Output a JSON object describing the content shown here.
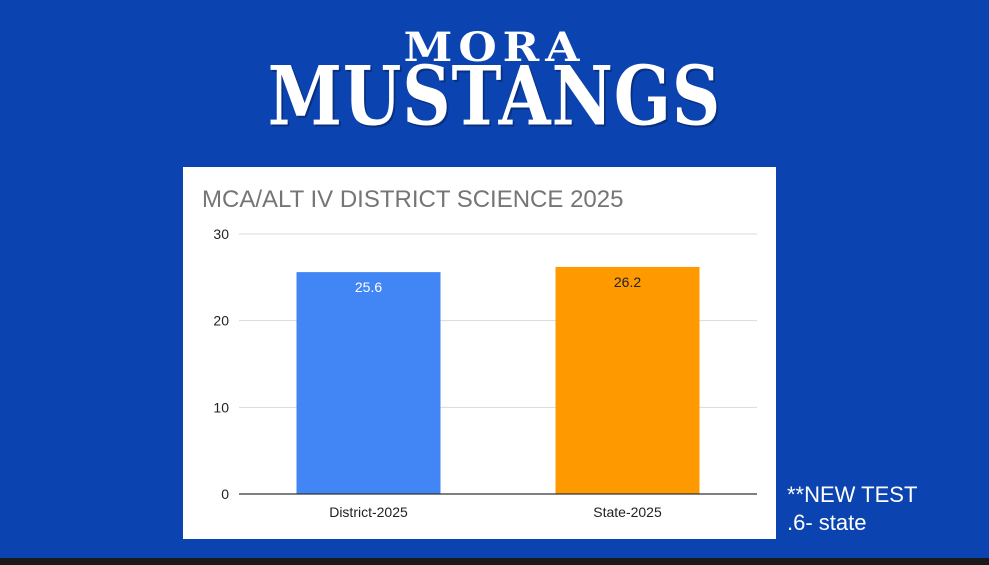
{
  "logo": {
    "line1": "MORA",
    "line2": "MUSTANGS"
  },
  "note": {
    "line1": "**NEW TEST",
    "line2": ".6- state"
  },
  "colors": {
    "background": "#0b44b0",
    "district_bar": "#4285f4",
    "state_bar": "#ff9900"
  },
  "chart_data": {
    "type": "bar",
    "title": "MCA/ALT IV DISTRICT SCIENCE 2025",
    "categories": [
      "District-2025",
      "State-2025"
    ],
    "values": [
      25.6,
      26.2
    ],
    "data_labels": [
      "25.6",
      "26.2"
    ],
    "bar_colors": [
      "#4285f4",
      "#ff9900"
    ],
    "label_colors": [
      "#ffffff",
      "#222222"
    ],
    "ylim": [
      0,
      30
    ],
    "yticks": [
      0,
      10,
      20,
      30
    ],
    "grid": true,
    "xlabel": "",
    "ylabel": ""
  }
}
